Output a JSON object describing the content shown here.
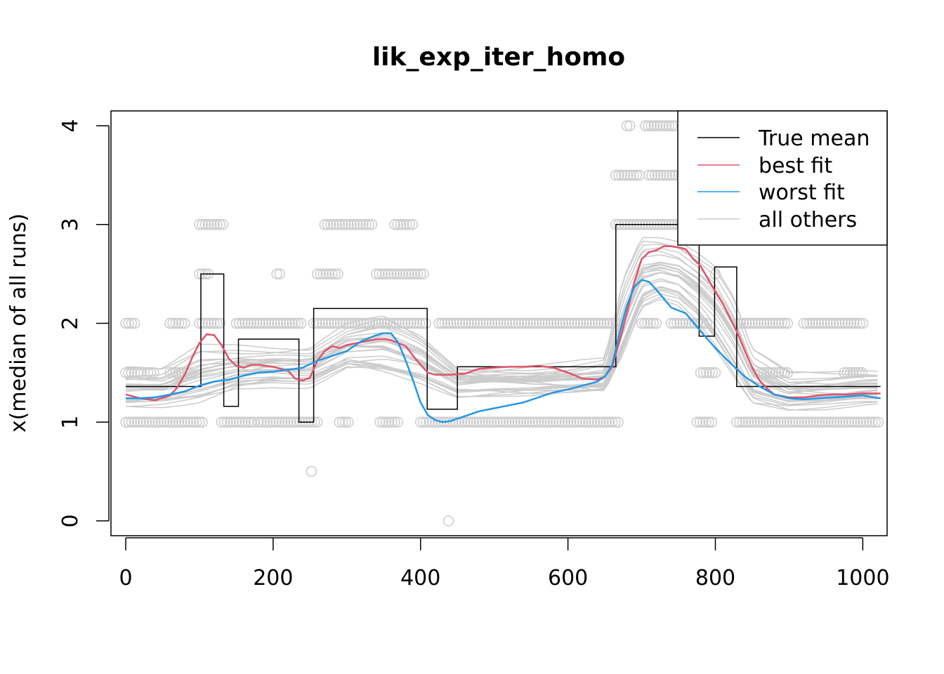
{
  "chart_data": {
    "type": "line",
    "title": "lik_exp_iter_homo",
    "xlabel": "",
    "ylabel": "x(median of all runs)",
    "xlim": [
      -20,
      1033
    ],
    "ylim": [
      -0.15,
      4.15
    ],
    "xticks": [
      0,
      200,
      400,
      600,
      800,
      1000
    ],
    "yticks": [
      0,
      1,
      2,
      3,
      4
    ],
    "grid": false,
    "legend_position": "top-right",
    "legend": [
      {
        "label": "True mean",
        "color": "#000000"
      },
      {
        "label": "best fit",
        "color": "#DF536B"
      },
      {
        "label": "worst fit",
        "color": "#2297E6"
      },
      {
        "label": "all others",
        "color": "#CCCCCC"
      }
    ],
    "colors": {
      "true_mean": "#000000",
      "best": "#DF536B",
      "worst": "#2297E6",
      "others": "#CCCCCC",
      "points": "#CCCCCC"
    },
    "true_mean_steps": [
      {
        "x0": 0,
        "x1": 102,
        "y": 1.36
      },
      {
        "x0": 102,
        "x1": 133,
        "y": 2.5
      },
      {
        "x0": 133,
        "x1": 153,
        "y": 1.16
      },
      {
        "x0": 153,
        "x1": 235,
        "y": 1.84
      },
      {
        "x0": 235,
        "x1": 255,
        "y": 1.0
      },
      {
        "x0": 255,
        "x1": 409,
        "y": 2.15
      },
      {
        "x0": 409,
        "x1": 450,
        "y": 1.13
      },
      {
        "x0": 450,
        "x1": 665,
        "y": 1.56
      },
      {
        "x0": 665,
        "x1": 778,
        "y": 3.0
      },
      {
        "x0": 778,
        "x1": 799,
        "y": 1.87
      },
      {
        "x0": 799,
        "x1": 829,
        "y": 2.57
      },
      {
        "x0": 829,
        "x1": 1024,
        "y": 1.36
      }
    ],
    "series": [
      {
        "name": "best fit",
        "x": [
          0,
          20,
          40,
          60,
          70,
          80,
          90,
          100,
          110,
          120,
          130,
          140,
          150,
          160,
          170,
          180,
          200,
          220,
          230,
          240,
          250,
          260,
          270,
          280,
          290,
          300,
          320,
          340,
          350,
          360,
          370,
          380,
          390,
          400,
          410,
          420,
          440,
          460,
          480,
          500,
          520,
          540,
          560,
          580,
          600,
          620,
          640,
          650,
          660,
          670,
          680,
          690,
          700,
          710,
          720,
          730,
          740,
          750,
          760,
          770,
          780,
          790,
          800,
          810,
          820,
          830,
          840,
          850,
          860,
          870,
          880,
          900,
          920,
          940,
          960,
          980,
          1000,
          1024
        ],
        "y": [
          1.28,
          1.24,
          1.22,
          1.27,
          1.35,
          1.48,
          1.65,
          1.8,
          1.89,
          1.88,
          1.78,
          1.64,
          1.57,
          1.55,
          1.58,
          1.58,
          1.56,
          1.52,
          1.44,
          1.42,
          1.45,
          1.62,
          1.72,
          1.77,
          1.75,
          1.78,
          1.81,
          1.84,
          1.84,
          1.83,
          1.8,
          1.77,
          1.67,
          1.58,
          1.5,
          1.48,
          1.48,
          1.49,
          1.54,
          1.55,
          1.56,
          1.56,
          1.57,
          1.55,
          1.5,
          1.44,
          1.43,
          1.46,
          1.56,
          1.82,
          2.1,
          2.42,
          2.65,
          2.72,
          2.74,
          2.78,
          2.78,
          2.77,
          2.75,
          2.65,
          2.58,
          2.45,
          2.32,
          2.2,
          2.05,
          1.9,
          1.72,
          1.55,
          1.42,
          1.34,
          1.28,
          1.25,
          1.25,
          1.27,
          1.28,
          1.28,
          1.29,
          1.29
        ],
        "color": "#DF536B"
      },
      {
        "name": "worst fit",
        "x": [
          0,
          20,
          40,
          60,
          80,
          100,
          120,
          140,
          160,
          180,
          200,
          220,
          240,
          260,
          280,
          300,
          320,
          340,
          350,
          360,
          370,
          380,
          390,
          400,
          410,
          420,
          430,
          440,
          460,
          480,
          500,
          520,
          540,
          560,
          580,
          600,
          620,
          630,
          640,
          650,
          660,
          670,
          680,
          690,
          700,
          710,
          720,
          730,
          740,
          760,
          780,
          800,
          820,
          840,
          860,
          880,
          900,
          920,
          940,
          960,
          980,
          1000,
          1024
        ],
        "y": [
          1.24,
          1.24,
          1.25,
          1.28,
          1.31,
          1.37,
          1.41,
          1.43,
          1.47,
          1.5,
          1.51,
          1.53,
          1.55,
          1.62,
          1.67,
          1.72,
          1.82,
          1.88,
          1.9,
          1.9,
          1.8,
          1.62,
          1.42,
          1.2,
          1.07,
          1.02,
          1.0,
          1.01,
          1.06,
          1.11,
          1.14,
          1.17,
          1.2,
          1.25,
          1.3,
          1.33,
          1.37,
          1.39,
          1.41,
          1.46,
          1.58,
          1.9,
          2.18,
          2.37,
          2.44,
          2.42,
          2.34,
          2.25,
          2.16,
          2.1,
          1.92,
          1.75,
          1.6,
          1.46,
          1.36,
          1.28,
          1.24,
          1.23,
          1.24,
          1.25,
          1.26,
          1.27,
          1.24
        ],
        "color": "#2297E6"
      }
    ],
    "others_band": {
      "x": [
        0,
        50,
        100,
        150,
        200,
        250,
        300,
        350,
        400,
        450,
        500,
        550,
        600,
        650,
        675,
        700,
        725,
        750,
        775,
        800,
        825,
        850,
        900,
        950,
        1000,
        1024
      ],
      "center": [
        1.33,
        1.34,
        1.48,
        1.55,
        1.56,
        1.55,
        1.75,
        1.78,
        1.65,
        1.42,
        1.42,
        1.42,
        1.44,
        1.47,
        2.05,
        2.5,
        2.55,
        2.5,
        2.35,
        2.15,
        1.85,
        1.45,
        1.3,
        1.32,
        1.35,
        1.35
      ],
      "spread": [
        0.18,
        0.17,
        0.27,
        0.2,
        0.17,
        0.18,
        0.22,
        0.3,
        0.25,
        0.14,
        0.12,
        0.12,
        0.14,
        0.18,
        0.42,
        0.38,
        0.32,
        0.32,
        0.35,
        0.4,
        0.38,
        0.25,
        0.16,
        0.16,
        0.16,
        0.16
      ],
      "count": 28
    },
    "points_clusters": [
      {
        "y": 1.0,
        "ranges": [
          [
            0,
            105
          ],
          [
            130,
            175
          ],
          [
            180,
            225
          ],
          [
            228,
            262
          ],
          [
            290,
            305
          ],
          [
            345,
            370
          ],
          [
            400,
            668
          ],
          [
            775,
            795
          ],
          [
            829,
            1024
          ]
        ]
      },
      {
        "y": 1.5,
        "ranges": [
          [
            0,
            20
          ],
          [
            30,
            40
          ],
          [
            60,
            90
          ],
          [
            780,
            800
          ],
          [
            862,
            900
          ],
          [
            975,
            1000
          ]
        ]
      },
      {
        "y": 2.0,
        "ranges": [
          [
            0,
            15
          ],
          [
            60,
            80
          ],
          [
            100,
            130
          ],
          [
            150,
            240
          ],
          [
            255,
            410
          ],
          [
            425,
            665
          ],
          [
            700,
            720
          ],
          [
            740,
            790
          ],
          [
            830,
            900
          ],
          [
            920,
            1000
          ]
        ]
      },
      {
        "y": 2.5,
        "ranges": [
          [
            100,
            115
          ],
          [
            205,
            210
          ],
          [
            260,
            290
          ],
          [
            340,
            405
          ],
          [
            800,
            802
          ]
        ]
      },
      {
        "y": 3.0,
        "ranges": [
          [
            100,
            135
          ],
          [
            270,
            335
          ],
          [
            365,
            390
          ],
          [
            665,
            778
          ]
        ]
      },
      {
        "y": 3.5,
        "ranges": [
          [
            665,
            700
          ],
          [
            710,
            758
          ]
        ]
      },
      {
        "y": 4.0,
        "ranges": [
          [
            680,
            685
          ],
          [
            705,
            745
          ]
        ]
      },
      {
        "y": 0.5,
        "ranges": [
          [
            252,
            252
          ]
        ]
      },
      {
        "y": 0.0,
        "ranges": [
          [
            438,
            438
          ]
        ]
      }
    ]
  }
}
